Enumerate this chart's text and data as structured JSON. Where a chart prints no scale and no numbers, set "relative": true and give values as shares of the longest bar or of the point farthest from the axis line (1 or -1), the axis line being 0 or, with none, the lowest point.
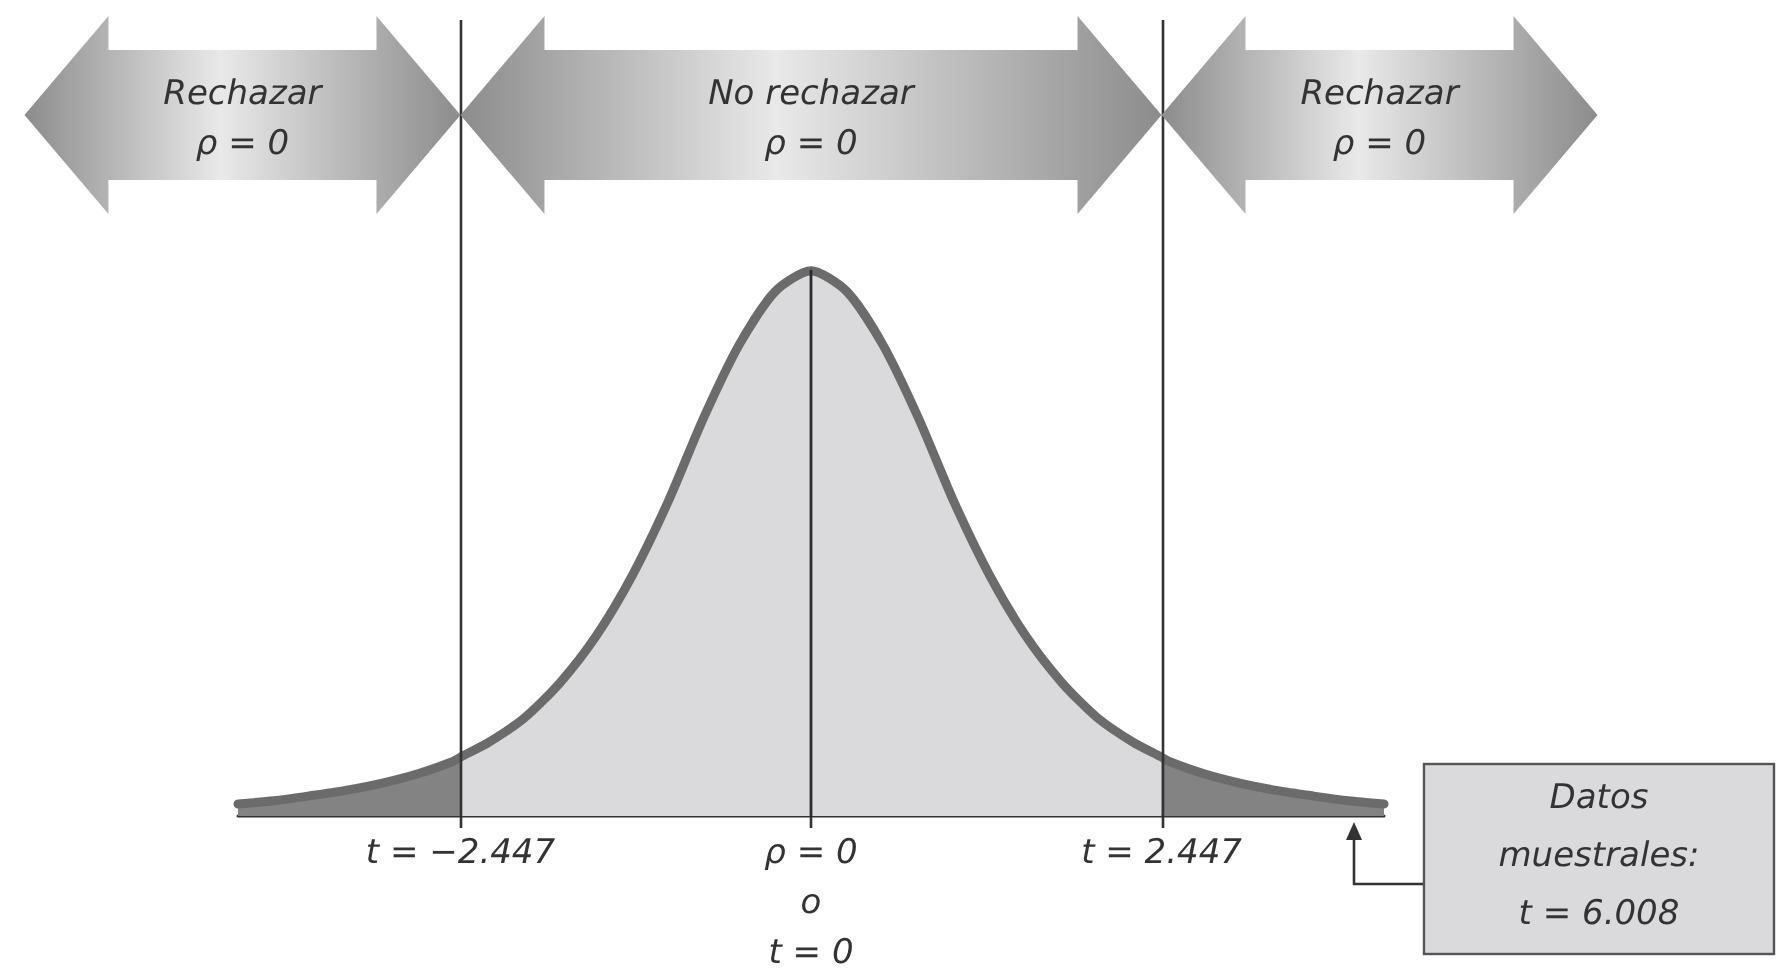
{
  "chart_data": {
    "type": "area",
    "relative": true,
    "xlim": [
      -4,
      4
    ],
    "xticks": [
      {
        "value": -2.447,
        "label": "t = −2.447"
      },
      {
        "value": 0,
        "label": "ρ = 0\no\nt = 0"
      },
      {
        "value": 2.447,
        "label": "t = 2.447"
      }
    ],
    "series": [
      {
        "color": "#838383",
        "x": [
          -4,
          -3.75,
          -3.5,
          -3.25,
          -3,
          -2.75,
          -2.5,
          -2.447
        ],
        "values": [
          0.022,
          0.028,
          0.037,
          0.047,
          0.06,
          0.077,
          0.1,
          0.108
        ]
      },
      {
        "color": "#dadadd",
        "x": [
          -2.447,
          -2.25,
          -2,
          -1.75,
          -1.5,
          -1.25,
          -1,
          -0.75,
          -0.5,
          -0.25,
          0,
          0.25,
          0.5,
          0.75,
          1,
          1.25,
          1.5,
          1.75,
          2,
          2.25,
          2.447
        ],
        "values": [
          0.108,
          0.135,
          0.18,
          0.245,
          0.33,
          0.44,
          0.575,
          0.73,
          0.865,
          0.962,
          1,
          0.962,
          0.865,
          0.73,
          0.575,
          0.44,
          0.33,
          0.245,
          0.18,
          0.135,
          0.108
        ]
      },
      {
        "color": "#838383",
        "x": [
          2.447,
          2.5,
          2.75,
          3,
          3.25,
          3.5,
          3.75,
          4
        ],
        "values": [
          0.108,
          0.1,
          0.077,
          0.06,
          0.047,
          0.037,
          0.028,
          0.022
        ]
      },
      {
        "type": "line",
        "color": "#6b6b6b",
        "x": [
          -4,
          -3.75,
          -3.5,
          -3.25,
          -3,
          -2.75,
          -2.5,
          -2.447,
          -2.25,
          -2,
          -1.75,
          -1.5,
          -1.25,
          -1,
          -0.75,
          -0.5,
          -0.25,
          0,
          0.25,
          0.5,
          0.75,
          1,
          1.25,
          1.5,
          1.75,
          2,
          2.25,
          2.447,
          2.5,
          2.75,
          3,
          3.25,
          3.5,
          3.75,
          4
        ],
        "values": [
          0.022,
          0.028,
          0.037,
          0.047,
          0.06,
          0.077,
          0.1,
          0.108,
          0.135,
          0.18,
          0.245,
          0.33,
          0.44,
          0.575,
          0.73,
          0.865,
          0.962,
          1,
          0.962,
          0.865,
          0.73,
          0.575,
          0.44,
          0.33,
          0.245,
          0.18,
          0.135,
          0.108,
          0.1,
          0.077,
          0.06,
          0.047,
          0.037,
          0.028,
          0.022
        ]
      },
      {
        "type": "line",
        "color": "#2b2b2b",
        "x": [
          0,
          0
        ],
        "values": [
          0,
          1
        ]
      }
    ],
    "ref_lines": [
      {
        "axis": "x",
        "value": -2.447,
        "color": "#333333"
      },
      {
        "axis": "x",
        "value": 2.447,
        "color": "#333333"
      }
    ],
    "annotations": [
      "Rechazar\nρ = 0",
      "No rechazar\nρ = 0",
      "Rechazar\nρ = 0",
      "Datos\nmuestrales:\nt = 6.008"
    ]
  }
}
